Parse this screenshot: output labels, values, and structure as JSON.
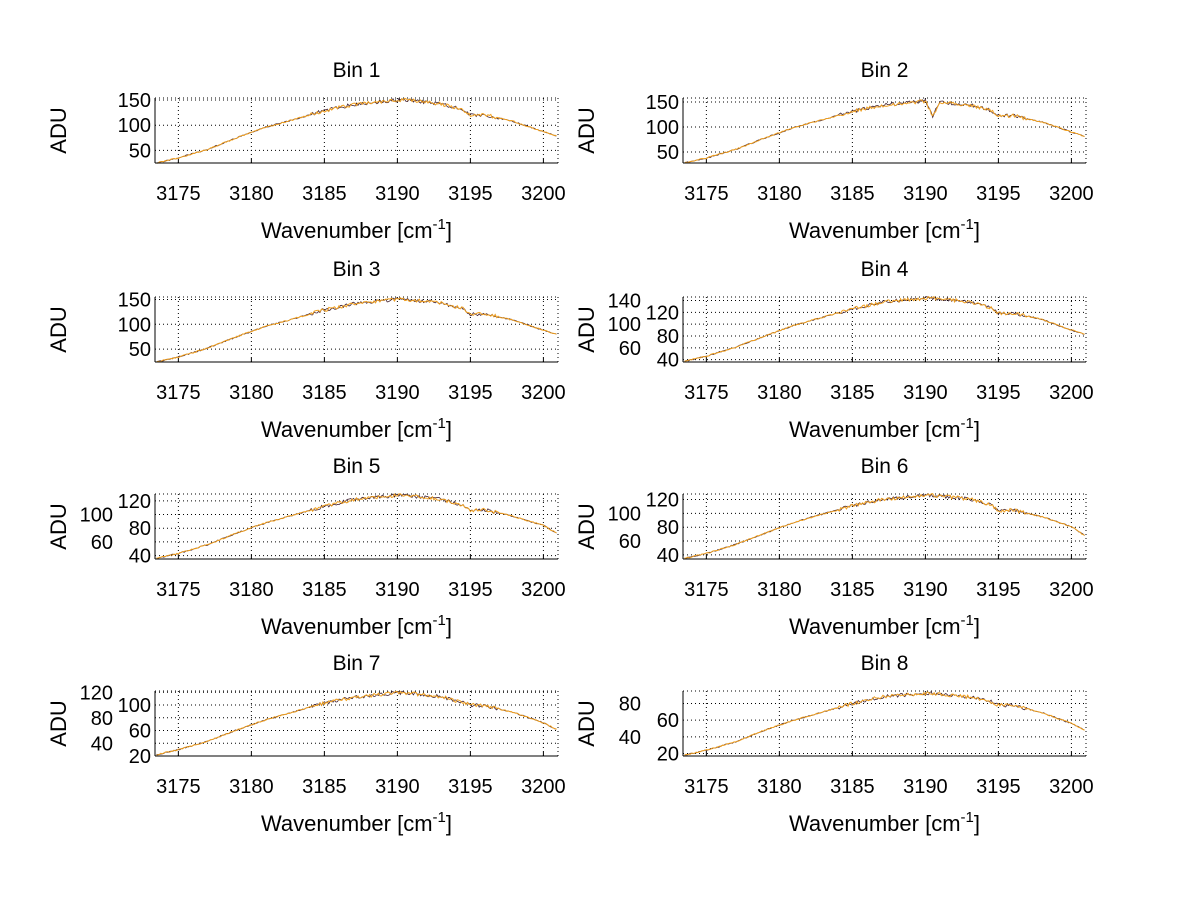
{
  "chart_data": [
    {
      "type": "line",
      "title": "Bin 1",
      "xlabel": "Wavenumber [cm",
      "xlabel_sup": "-1",
      "xlabel_end": "]",
      "ylabel": "ADU",
      "xlim": [
        3173.4,
        3201
      ],
      "ylim": [
        25,
        154
      ],
      "xticks": [
        3175,
        3180,
        3185,
        3190,
        3195,
        3200
      ],
      "yticks": [
        50,
        100,
        150
      ],
      "grid": true,
      "x": [
        3173.5,
        3175,
        3177,
        3179,
        3181,
        3183,
        3185,
        3187,
        3189,
        3190,
        3190.5,
        3191,
        3193,
        3194.5,
        3195,
        3196,
        3198,
        3200,
        3200.9
      ],
      "values": [
        25,
        35,
        52,
        75,
        96,
        112,
        129,
        141,
        147,
        150,
        150,
        149,
        142,
        131,
        120,
        121,
        107,
        87,
        79
      ]
    },
    {
      "type": "line",
      "title": "Bin 2",
      "xlabel": "Wavenumber [cm",
      "xlabel_sup": "-1",
      "xlabel_end": "]",
      "ylabel": "ADU",
      "xlim": [
        3173.4,
        3201
      ],
      "ylim": [
        28,
        158
      ],
      "xticks": [
        3175,
        3180,
        3185,
        3190,
        3195,
        3200
      ],
      "yticks": [
        50,
        100,
        150
      ],
      "grid": true,
      "x": [
        3173.5,
        3175,
        3177,
        3179,
        3181,
        3183,
        3185,
        3187,
        3189,
        3190,
        3190.5,
        3191,
        3193,
        3194.5,
        3195,
        3196,
        3198,
        3200,
        3200.9
      ],
      "values": [
        28,
        38,
        55,
        78,
        99,
        115,
        131,
        143,
        149,
        152,
        122,
        150,
        144,
        133,
        122,
        123,
        110,
        90,
        81
      ]
    },
    {
      "type": "line",
      "title": "Bin 3",
      "xlabel": "Wavenumber [cm",
      "xlabel_sup": "-1",
      "xlabel_end": "]",
      "ylabel": "ADU",
      "xlim": [
        3173.4,
        3201
      ],
      "ylim": [
        24,
        155
      ],
      "xticks": [
        3175,
        3180,
        3185,
        3190,
        3195,
        3200
      ],
      "yticks": [
        50,
        100,
        150
      ],
      "grid": true,
      "x": [
        3173.5,
        3175,
        3177,
        3179,
        3181,
        3183,
        3185,
        3187,
        3189,
        3190,
        3190.5,
        3191,
        3193,
        3194.5,
        3195,
        3196,
        3198,
        3200,
        3200.9
      ],
      "values": [
        24,
        34,
        52,
        75,
        96,
        112,
        129,
        141,
        148,
        150,
        150,
        149,
        143,
        131,
        120,
        121,
        108,
        88,
        80
      ]
    },
    {
      "type": "line",
      "title": "Bin 4",
      "xlabel": "Wavenumber [cm",
      "xlabel_sup": "-1",
      "xlabel_end": "]",
      "ylabel": "ADU",
      "xlim": [
        3173.4,
        3201
      ],
      "ylim": [
        36,
        146
      ],
      "xticks": [
        3175,
        3180,
        3185,
        3190,
        3195,
        3200
      ],
      "yticks": [
        40,
        60,
        80,
        100,
        120,
        140
      ],
      "grid": true,
      "x": [
        3173.5,
        3175,
        3177,
        3179,
        3181,
        3183,
        3185,
        3187,
        3189,
        3190,
        3190.5,
        3191,
        3193,
        3194.5,
        3195,
        3196,
        3198,
        3200,
        3200.9
      ],
      "values": [
        37,
        46,
        61,
        80,
        98,
        112,
        126,
        137,
        142,
        144,
        144,
        143,
        138,
        128,
        118,
        119,
        108,
        90,
        83
      ]
    },
    {
      "type": "line",
      "title": "Bin 5",
      "xlabel": "Wavenumber [cm",
      "xlabel_sup": "-1",
      "xlabel_end": "]",
      "ylabel": "ADU",
      "xlim": [
        3173.4,
        3201
      ],
      "ylim": [
        35,
        130
      ],
      "xticks": [
        3175,
        3180,
        3185,
        3190,
        3195,
        3200
      ],
      "yticks": [
        40,
        60,
        80,
        100,
        120
      ],
      "grid": true,
      "x": [
        3173.5,
        3175,
        3177,
        3179,
        3181,
        3183,
        3185,
        3187,
        3189,
        3190,
        3190.5,
        3191,
        3193,
        3194.5,
        3195,
        3196,
        3198,
        3200,
        3200.9
      ],
      "values": [
        36,
        43,
        56,
        73,
        88,
        100,
        112,
        122,
        126,
        128,
        128,
        127,
        122,
        114,
        106,
        107,
        97,
        84,
        73
      ]
    },
    {
      "type": "line",
      "title": "Bin 6",
      "xlabel": "Wavenumber [cm",
      "xlabel_sup": "-1",
      "xlabel_end": "]",
      "ylabel": "ADU",
      "xlim": [
        3173.4,
        3201
      ],
      "ylim": [
        34,
        128
      ],
      "xticks": [
        3175,
        3180,
        3185,
        3190,
        3195,
        3200
      ],
      "yticks": [
        40,
        60,
        80,
        100,
        120
      ],
      "grid": true,
      "x": [
        3173.5,
        3175,
        3177,
        3179,
        3181,
        3183,
        3185,
        3187,
        3189,
        3190,
        3190.5,
        3191,
        3193,
        3194.5,
        3195,
        3196,
        3198,
        3200,
        3200.9
      ],
      "values": [
        35,
        42,
        55,
        71,
        87,
        99,
        111,
        120,
        124,
        126,
        126,
        125,
        121,
        112,
        104,
        105,
        95,
        81,
        68
      ]
    },
    {
      "type": "line",
      "title": "Bin 7",
      "xlabel": "Wavenumber [cm",
      "xlabel_sup": "-1",
      "xlabel_end": "]",
      "ylabel": "ADU",
      "xlim": [
        3173.4,
        3201
      ],
      "ylim": [
        20,
        122
      ],
      "xticks": [
        3175,
        3180,
        3185,
        3190,
        3195,
        3200
      ],
      "yticks": [
        20,
        40,
        60,
        80,
        100,
        120
      ],
      "grid": true,
      "x": [
        3173.5,
        3175,
        3177,
        3179,
        3181,
        3183,
        3185,
        3187,
        3189,
        3190,
        3190.5,
        3191,
        3193,
        3194.5,
        3195,
        3196,
        3198,
        3200,
        3200.9
      ],
      "values": [
        22,
        30,
        43,
        61,
        77,
        90,
        103,
        112,
        117,
        119,
        119,
        118,
        113,
        104,
        100,
        99,
        88,
        72,
        62
      ]
    },
    {
      "type": "line",
      "title": "Bin 8",
      "xlabel": "Wavenumber [cm",
      "xlabel_sup": "-1",
      "xlabel_end": "]",
      "ylabel": "ADU",
      "xlim": [
        3173.4,
        3201
      ],
      "ylim": [
        17,
        95
      ],
      "xticks": [
        3175,
        3180,
        3185,
        3190,
        3195,
        3200
      ],
      "yticks": [
        20,
        40,
        60,
        80
      ],
      "grid": true,
      "x": [
        3173.5,
        3175,
        3177,
        3179,
        3181,
        3183,
        3185,
        3187,
        3189,
        3190,
        3190.5,
        3191,
        3193,
        3194.5,
        3195,
        3196,
        3198,
        3200,
        3200.9
      ],
      "values": [
        18,
        24,
        34,
        48,
        60,
        70,
        80,
        88,
        91,
        92,
        92,
        91,
        88,
        82,
        78,
        78,
        69,
        56,
        48
      ]
    }
  ],
  "colors": {
    "trace": "#f0a020",
    "trace_dark": "#402030",
    "axis": "#000000"
  }
}
